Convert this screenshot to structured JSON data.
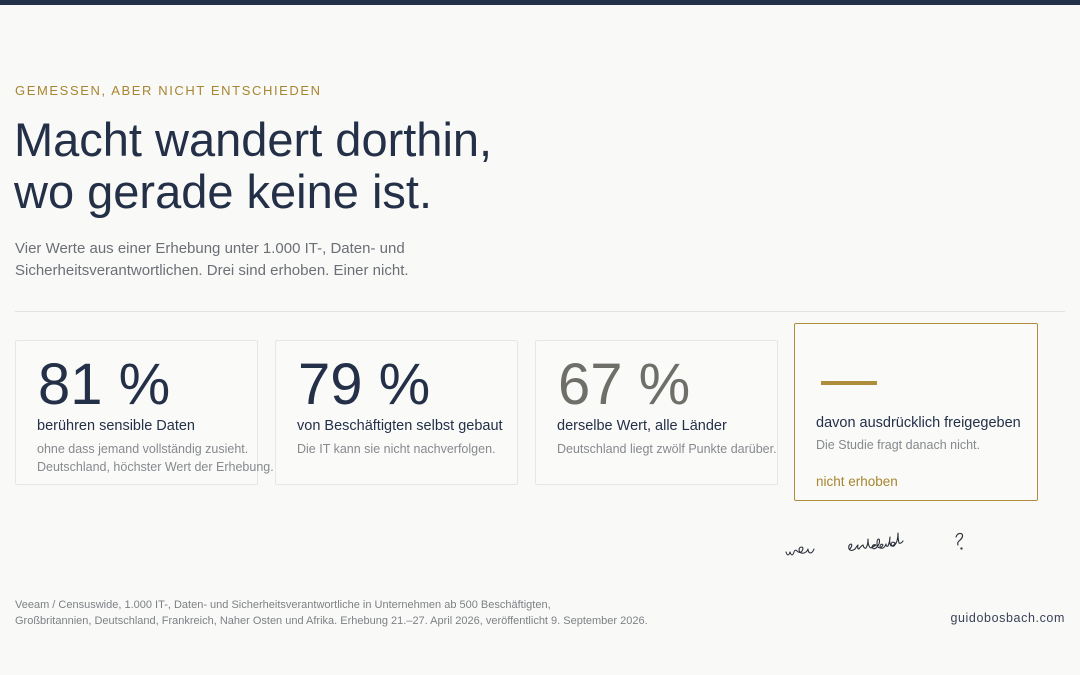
{
  "eyebrow": "GEMESSEN, ABER NICHT ENTSCHIEDEN",
  "headline": {
    "line1": "Macht wandert dorthin,",
    "line2": "wo gerade keine ist."
  },
  "lede": "Vier Werte aus einer Erhebung unter 1.000 IT-, Daten- und Sicherheitsverantwortlichen. Drei sind erhoben. Einer nicht.",
  "cards": [
    {
      "value": "81 %",
      "label": "berühren sensible Daten",
      "note_line1": "ohne dass jemand vollständig zusieht.",
      "note_line2": "Deutschland, höchster Wert der Erhebung."
    },
    {
      "value": "79 %",
      "label": "von Beschäftigten selbst gebaut",
      "note_line1": "Die IT kann sie nicht nachverfolgen.",
      "note_line2": ""
    },
    {
      "value": "67 %",
      "label": "derselbe Wert, alle Länder",
      "note_line1": "Deutschland liegt zwölf Punkte darüber.",
      "note_line2": ""
    },
    {
      "value": "—",
      "label": "davon ausdrücklich freigegeben",
      "note_line1": "Die Studie fragt danach nicht.",
      "status": "nicht erhoben"
    }
  ],
  "handwriting": "wer entscheidet?",
  "source": {
    "line1": "Veeam / Censuswide, 1.000 IT-, Daten- und Sicherheitsverantwortliche in Unternehmen ab 500 Beschäftigten,",
    "line2": "Großbritannien, Deutschland, Frankreich, Naher Osten und Afrika. Erhebung 21.–27. April 2026, veröffentlicht 9. September 2026."
  },
  "site": "guidobosbach.com",
  "colors": {
    "navy": "#223148",
    "gold": "#b08d3a",
    "background": "#f9f9f7"
  }
}
